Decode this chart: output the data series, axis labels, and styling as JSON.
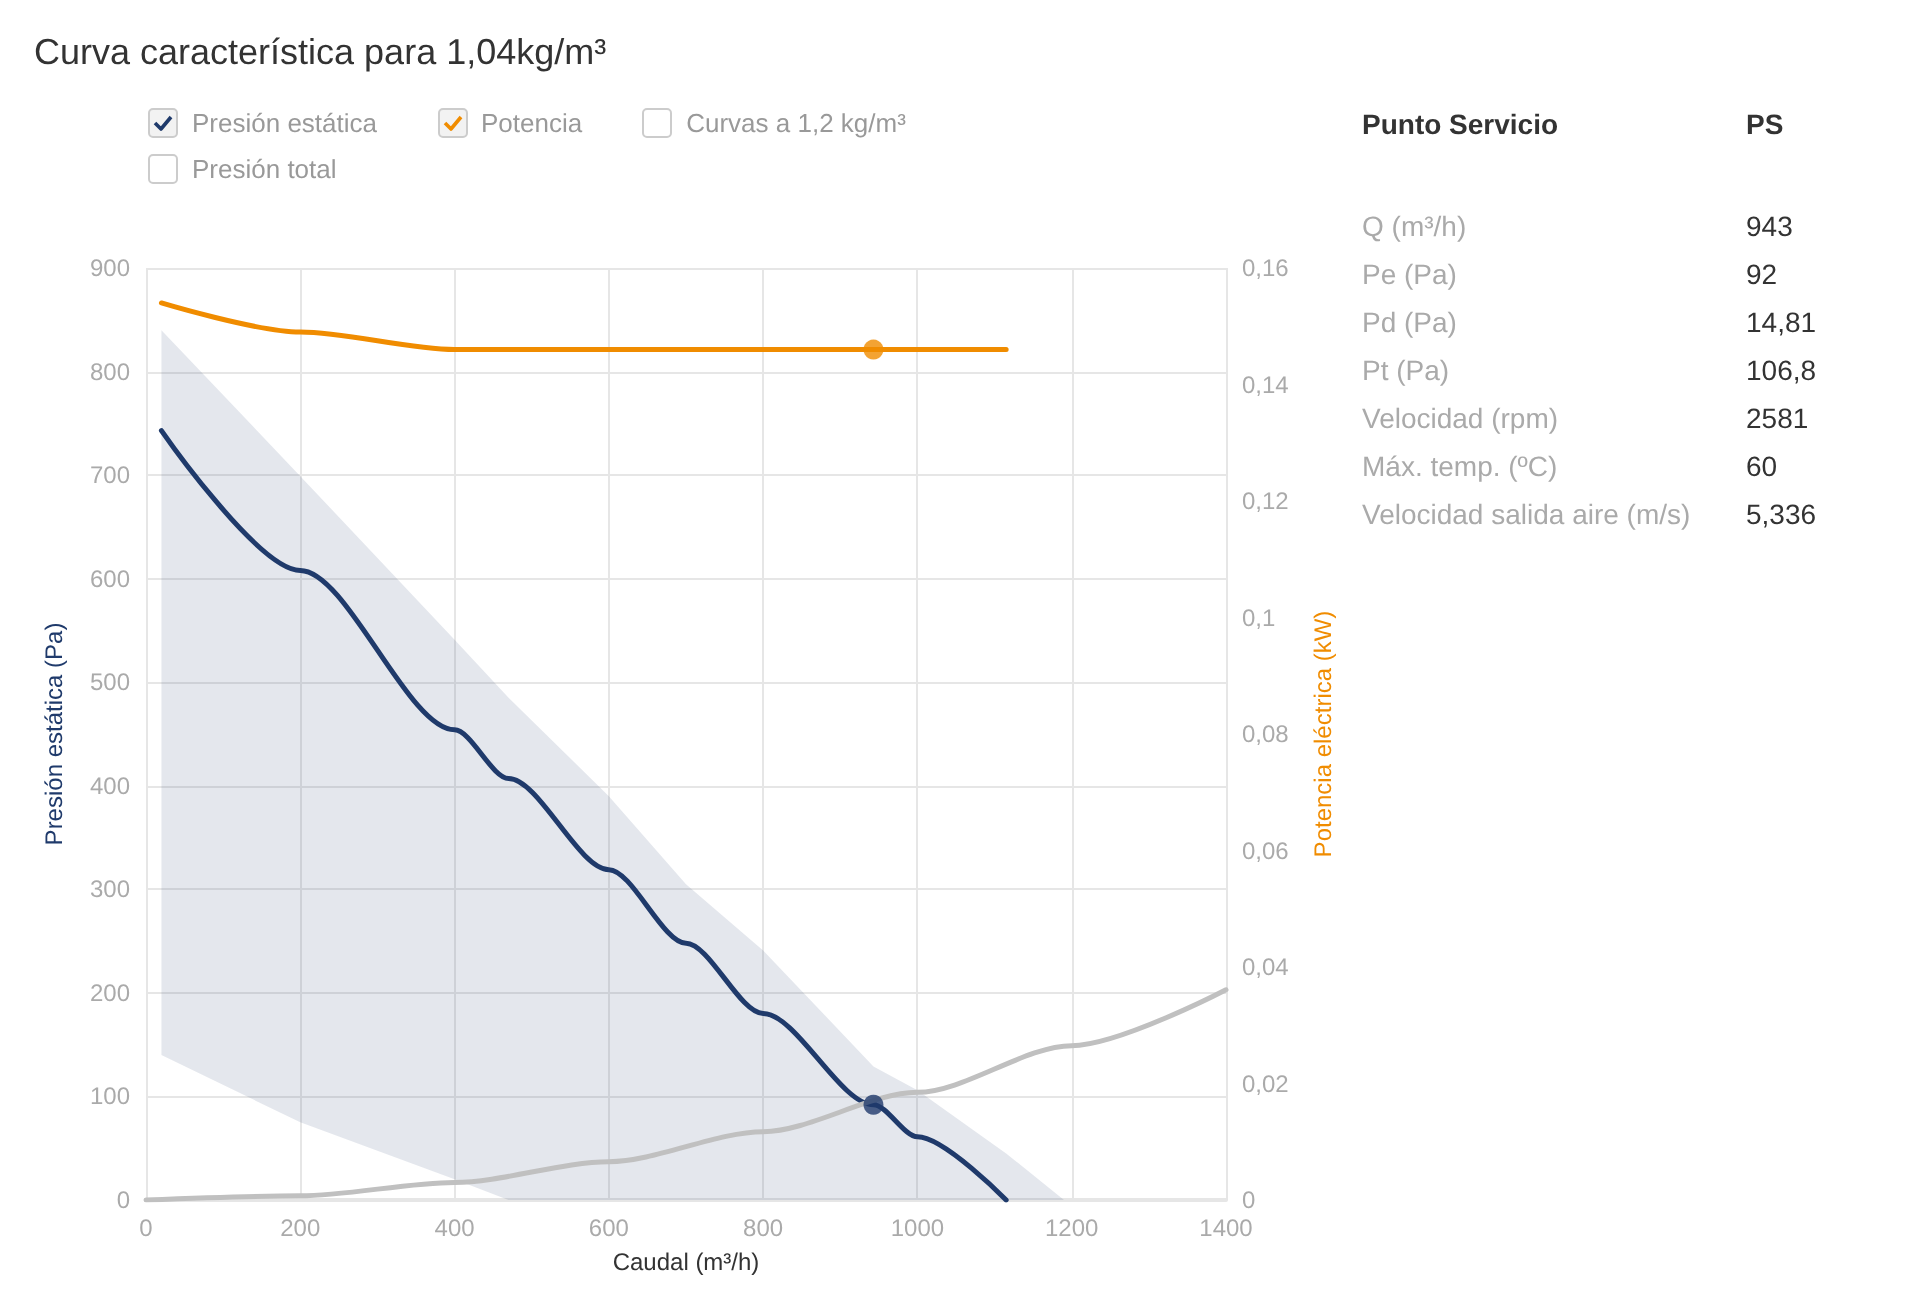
{
  "chart_data": [
    {
      "type": "line",
      "title": "Curva característica para 1,04kg/m³",
      "xlabel": "Caudal (m³/h)",
      "ylabel": "Presión estática (Pa)",
      "y2label": "Potencia eléctrica (kW)",
      "xlim": [
        0,
        1400
      ],
      "xticks": [
        0,
        200,
        400,
        600,
        800,
        1000,
        1200,
        1400
      ],
      "ylim": [
        0,
        900
      ],
      "yticks": [
        0,
        100,
        200,
        300,
        400,
        500,
        600,
        700,
        800,
        900
      ],
      "y2lim": [
        0,
        0.16
      ],
      "y2ticks": [
        0,
        {
          "value": 0.02,
          "label": "0,02"
        },
        {
          "value": 0.04,
          "label": "0,04"
        },
        {
          "value": 0.06,
          "label": "0,06"
        },
        {
          "value": 0.08,
          "label": "0,08"
        },
        {
          "value": 0.1,
          "label": "0,1"
        },
        {
          "value": 0.12,
          "label": "0,12"
        },
        {
          "value": 0.14,
          "label": "0,14"
        },
        {
          "value": 0.16,
          "label": "0,16"
        }
      ],
      "grid": true,
      "legend": "top left",
      "annotations": [
        "Curvas a 1,2 kg/m³",
        "Presión total"
      ],
      "series": [
        {
          "type": "line",
          "name": "Presión estática",
          "color": "#1f3a6b",
          "x": [
            20,
            200,
            400,
            470,
            600,
            700,
            800,
            943,
            1000,
            1115,
            1190
          ],
          "values": [
            743,
            608,
            454,
            407,
            319,
            248,
            180,
            92,
            61,
            0,
            null
          ],
          "lower": [
            140,
            75,
            20,
            0,
            0,
            0,
            0,
            0,
            0,
            0,
            0
          ],
          "upper": [
            840,
            699,
            541,
            485,
            390,
            305,
            241,
            129,
            106,
            45,
            0
          ]
        },
        {
          "type": "line",
          "name": "Potencia",
          "color": "#f08c00",
          "axis": "y2",
          "x": [
            20,
            200,
            400,
            600,
            800,
            943,
            1115
          ],
          "values": [
            0.154,
            0.149,
            0.146,
            0.146,
            0.146,
            0.146,
            0.146
          ]
        },
        {
          "type": "line",
          "color": "#c0c0c0",
          "x": [
            0,
            200,
            400,
            600,
            800,
            1000,
            1200,
            1400
          ],
          "values": [
            0,
            4,
            17,
            37,
            66,
            104,
            149,
            203
          ]
        },
        {
          "type": "scatter",
          "color": "#1f3a6b",
          "x": [
            943
          ],
          "values": [
            92
          ]
        },
        {
          "type": "scatter",
          "color": "#f08c00",
          "axis": "y2",
          "x": [
            943
          ],
          "values": [
            0.146
          ]
        }
      ]
    },
    {
      "type": "other",
      "annotations": [
        "Punto Servicio",
        "PS",
        "Q (m³/h)",
        "943",
        "Pe (Pa)",
        "92",
        "Pd (Pa)",
        "14,81",
        "Pt (Pa)",
        "106,8",
        "Velocidad (rpm)",
        "2581",
        "Máx. temp. (ºC)",
        "60",
        "Velocidad salida aire (m/s)",
        "5,336"
      ]
    }
  ]
}
